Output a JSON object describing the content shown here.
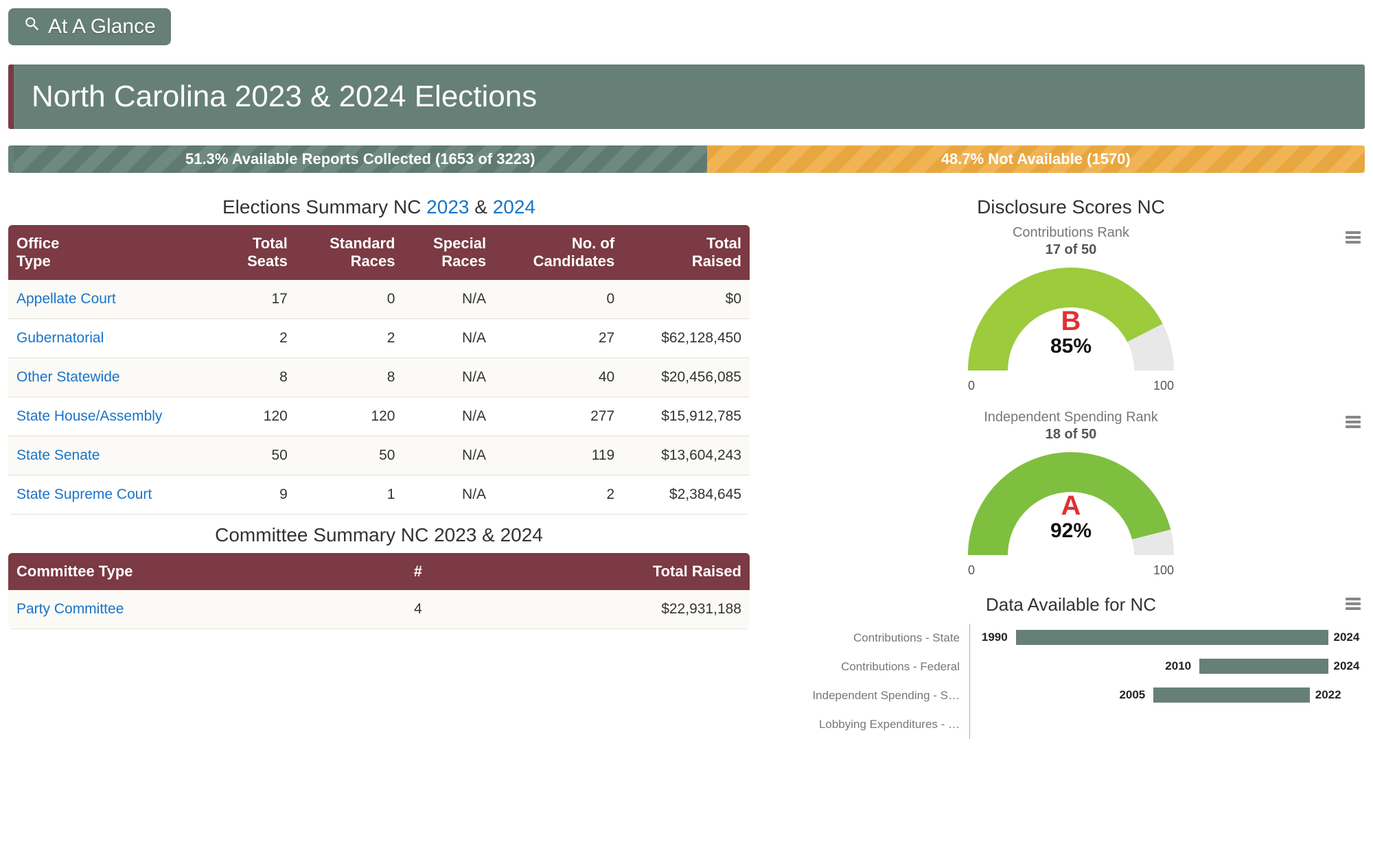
{
  "colors": {
    "teal": "#678077",
    "maroon": "#7b3a44",
    "orange": "#f1b454",
    "link": "#1a74c8",
    "gauge1_fill": "#9ccb3c",
    "gauge2_fill": "#7fbf3f",
    "gauge_track": "#e8e8e8",
    "grade_color": "#e03131"
  },
  "header": {
    "tag_label": "At A Glance",
    "title": "North Carolina 2023 & 2024 Elections"
  },
  "progress": {
    "collected_pct": 51.3,
    "notavail_pct": 48.7,
    "collected_label": "51.3% Available Reports Collected (1653 of 3223)",
    "notavail_label": "48.7% Not Available (1570)"
  },
  "elections_summary": {
    "title_prefix": "Elections Summary NC ",
    "year1": "2023",
    "amp": " & ",
    "year2": "2024",
    "columns": [
      "Office\nType",
      "Total\nSeats",
      "Standard\nRaces",
      "Special\nRaces",
      "No. of\nCandidates",
      "Total\nRaised"
    ],
    "rows": [
      {
        "office": "Appellate Court",
        "seats": "17",
        "std": "0",
        "spec": "N/A",
        "cand": "0",
        "raised": "$0"
      },
      {
        "office": "Gubernatorial",
        "seats": "2",
        "std": "2",
        "spec": "N/A",
        "cand": "27",
        "raised": "$62,128,450"
      },
      {
        "office": "Other Statewide",
        "seats": "8",
        "std": "8",
        "spec": "N/A",
        "cand": "40",
        "raised": "$20,456,085"
      },
      {
        "office": "State House/Assembly",
        "seats": "120",
        "std": "120",
        "spec": "N/A",
        "cand": "277",
        "raised": "$15,912,785"
      },
      {
        "office": "State Senate",
        "seats": "50",
        "std": "50",
        "spec": "N/A",
        "cand": "119",
        "raised": "$13,604,243"
      },
      {
        "office": "State Supreme Court",
        "seats": "9",
        "std": "1",
        "spec": "N/A",
        "cand": "2",
        "raised": "$2,384,645"
      }
    ]
  },
  "committee_summary": {
    "title": "Committee Summary NC 2023 & 2024",
    "columns": [
      "Committee Type",
      "#",
      "Total Raised"
    ],
    "rows": [
      {
        "type": "Party Committee",
        "count": "4",
        "raised": "$22,931,188"
      }
    ]
  },
  "disclosure": {
    "title": "Disclosure Scores NC",
    "gauges": [
      {
        "subtitle": "Contributions Rank",
        "rank": "17 of 50",
        "grade": "B",
        "pct": 85,
        "pct_label": "85%",
        "fill_color": "#9ccb3c",
        "tick_min": "0",
        "tick_max": "100"
      },
      {
        "subtitle": "Independent Spending Rank",
        "rank": "18 of 50",
        "grade": "A",
        "pct": 92,
        "pct_label": "92%",
        "fill_color": "#7fbf3f",
        "tick_min": "0",
        "tick_max": "100"
      }
    ]
  },
  "data_available": {
    "title": "Data Available for NC",
    "domain_min": 1985,
    "domain_max": 2028,
    "rows": [
      {
        "label": "Contributions - State",
        "start": 1990,
        "end": 2024,
        "start_label": "1990",
        "end_label": "2024"
      },
      {
        "label": "Contributions - Federal",
        "start": 2010,
        "end": 2024,
        "start_label": "2010",
        "end_label": "2024"
      },
      {
        "label": "Independent Spending - S…",
        "start": 2005,
        "end": 2022,
        "start_label": "2005",
        "end_label": "2022"
      },
      {
        "label": "Lobbying Expenditures - …",
        "start": null,
        "end": null,
        "start_label": "",
        "end_label": ""
      }
    ]
  }
}
